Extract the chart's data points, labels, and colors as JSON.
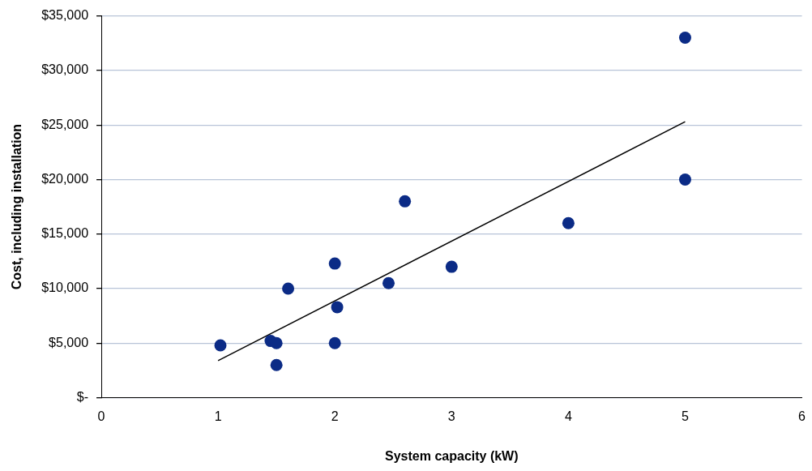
{
  "chart_data": {
    "type": "scatter",
    "xlabel": "System capacity (kW)",
    "ylabel": "Cost, including installation",
    "series": [
      {
        "type": "scatter",
        "color": "#0b2b86",
        "marker": "circle",
        "x": [
          1.02,
          1.45,
          1.5,
          1.5,
          1.6,
          2.0,
          2.02,
          2.0,
          2.46,
          2.6,
          3.0,
          4.0,
          5.0,
          5.0
        ],
        "values": [
          4800,
          5200,
          5000,
          3000,
          10000,
          12300,
          8300,
          5000,
          10500,
          18000,
          12000,
          16000,
          20000,
          33000
        ]
      },
      {
        "type": "line",
        "color": "#000000",
        "marker": "none",
        "x": [
          1.0,
          5.0
        ],
        "values": [
          3400,
          25300
        ]
      }
    ],
    "xlim": [
      0,
      6
    ],
    "xticks": [
      0,
      1,
      2,
      3,
      4,
      5,
      6
    ],
    "ylim": [
      0,
      35000
    ],
    "yticks": [
      {
        "value": 0,
        "label": "$-"
      },
      {
        "value": 5000,
        "label": "$5,000"
      },
      {
        "value": 10000,
        "label": "$10,000"
      },
      {
        "value": 15000,
        "label": "$15,000"
      },
      {
        "value": 20000,
        "label": "$20,000"
      },
      {
        "value": 25000,
        "label": "$25,000"
      },
      {
        "value": 30000,
        "label": "$30,000"
      },
      {
        "value": 35000,
        "label": "$35,000"
      }
    ],
    "grid": "y",
    "legend": false
  }
}
